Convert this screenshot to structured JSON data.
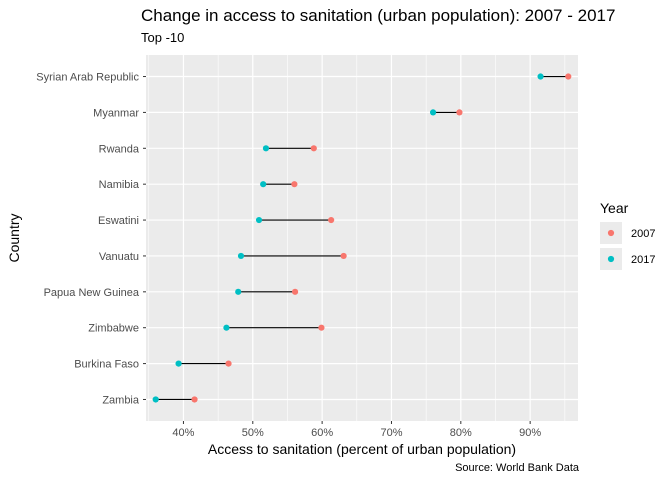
{
  "title": "Change in access to sanitation (urban population): 2007 - 2017",
  "subtitle": "Top -10",
  "caption": "Source: World Bank Data",
  "colors": {
    "panel": "#ebebeb",
    "grid_major": "#ffffff",
    "segment": "#000000",
    "y2007": "#F8766D",
    "y2017": "#00BFC4"
  },
  "chart_data": {
    "type": "dumbbell",
    "xlabel": "Access to sanitation (percent of urban population)",
    "ylabel": "Country",
    "xlim": [
      34.6,
      96.9
    ],
    "xticks": [
      40,
      50,
      60,
      70,
      80,
      90
    ],
    "xtick_labels": [
      "40%",
      "50%",
      "60%",
      "70%",
      "80%",
      "90%"
    ],
    "grid": true,
    "legend": {
      "title": "Year",
      "position": "right",
      "entries": [
        "2007",
        "2017"
      ]
    },
    "categories": [
      "Zambia",
      "Burkina Faso",
      "Zimbabwe",
      "Papua New Guinea",
      "Vanuatu",
      "Eswatini",
      "Namibia",
      "Rwanda",
      "Myanmar",
      "Syrian Arab Republic"
    ],
    "series": [
      {
        "name": "2007",
        "values": [
          41.6,
          46.5,
          59.9,
          56.1,
          63.1,
          61.3,
          56.0,
          58.8,
          79.8,
          95.5
        ]
      },
      {
        "name": "2017",
        "values": [
          36.0,
          39.3,
          46.2,
          47.9,
          48.3,
          50.9,
          51.5,
          51.9,
          76.0,
          91.5
        ]
      }
    ]
  }
}
